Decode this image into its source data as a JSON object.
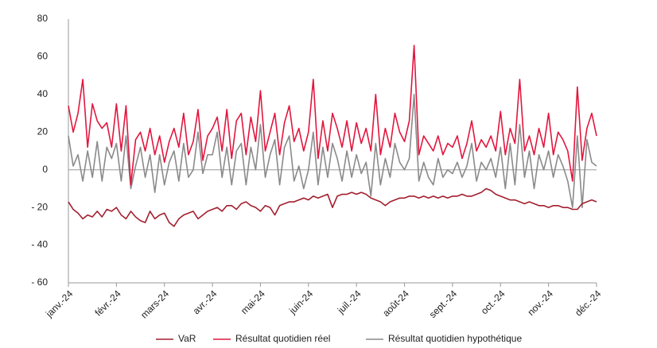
{
  "chart_data": {
    "type": "line",
    "categories": [
      "janv.-24",
      null,
      null,
      null,
      null,
      null,
      null,
      null,
      null,
      null,
      "févr.-24",
      null,
      null,
      null,
      null,
      null,
      null,
      null,
      null,
      null,
      "mars-24",
      null,
      null,
      null,
      null,
      null,
      null,
      null,
      null,
      null,
      "avr.-24",
      null,
      null,
      null,
      null,
      null,
      null,
      null,
      null,
      null,
      "mai-24",
      null,
      null,
      null,
      null,
      null,
      null,
      null,
      null,
      null,
      "juin-24",
      null,
      null,
      null,
      null,
      null,
      null,
      null,
      null,
      null,
      "juil.-24",
      null,
      null,
      null,
      null,
      null,
      null,
      null,
      null,
      null,
      "août-24",
      null,
      null,
      null,
      null,
      null,
      null,
      null,
      null,
      null,
      "sept.-24",
      null,
      null,
      null,
      null,
      null,
      null,
      null,
      null,
      null,
      "oct.-24",
      null,
      null,
      null,
      null,
      null,
      null,
      null,
      null,
      null,
      "nov.-24",
      null,
      null,
      null,
      null,
      null,
      null,
      null,
      null,
      null,
      "déc.-24"
    ],
    "series": [
      {
        "name": "VaR",
        "color": "#a31f2e",
        "values": [
          -17,
          -21,
          -23,
          -26,
          -24,
          -25,
          -22,
          -25,
          -21,
          -22,
          -20,
          -24,
          -26,
          -22,
          -25,
          -27,
          -28,
          -22,
          -26,
          -24,
          -23,
          -28,
          -30,
          -26,
          -24,
          -23,
          -22,
          -26,
          -24,
          -22,
          -21,
          -20,
          -22,
          -19,
          -19,
          -21,
          -18,
          -17,
          -19,
          -20,
          -22,
          -19,
          -20,
          -24,
          -19,
          -18,
          -17,
          -17,
          -16,
          -15,
          -16,
          -14,
          -15,
          -14,
          -13,
          -20,
          -14,
          -13,
          -13,
          -12,
          -13,
          -12,
          -13,
          -15,
          -16,
          -17,
          -19,
          -17,
          -16,
          -15,
          -15,
          -14,
          -14,
          -15,
          -14,
          -15,
          -14,
          -15,
          -14,
          -15,
          -14,
          -14,
          -13,
          -14,
          -14,
          -13,
          -12,
          -10,
          -11,
          -13,
          -14,
          -15,
          -16,
          -16,
          -17,
          -18,
          -17,
          -18,
          -19,
          -19,
          -20,
          -19,
          -19,
          -20,
          -20,
          -21,
          -21,
          -18,
          -17,
          -16,
          -17
        ]
      },
      {
        "name": "Résultat quotidien réel",
        "color": "#e2163e",
        "values": [
          34,
          20,
          30,
          48,
          12,
          35,
          26,
          22,
          25,
          12,
          35,
          10,
          34,
          -8,
          16,
          20,
          10,
          22,
          8,
          18,
          4,
          15,
          22,
          12,
          30,
          8,
          15,
          32,
          5,
          18,
          22,
          28,
          10,
          32,
          6,
          26,
          30,
          8,
          28,
          15,
          42,
          10,
          20,
          30,
          8,
          25,
          34,
          15,
          22,
          10,
          20,
          48,
          6,
          26,
          10,
          30,
          22,
          12,
          26,
          10,
          25,
          14,
          22,
          10,
          40,
          8,
          22,
          12,
          30,
          20,
          15,
          26,
          66,
          8,
          18,
          14,
          10,
          18,
          8,
          14,
          12,
          18,
          6,
          14,
          26,
          10,
          16,
          12,
          18,
          10,
          31,
          8,
          22,
          14,
          48,
          10,
          18,
          8,
          22,
          12,
          30,
          8,
          20,
          16,
          10,
          -6,
          44,
          5,
          22,
          30,
          18
        ]
      },
      {
        "name": "Résultat quotidien hypothétique",
        "color": "#8a8a8a",
        "values": [
          18,
          2,
          8,
          -6,
          10,
          -4,
          15,
          -6,
          12,
          6,
          14,
          -6,
          18,
          -10,
          2,
          12,
          -4,
          8,
          -12,
          8,
          -8,
          4,
          10,
          -6,
          14,
          -4,
          0,
          20,
          -2,
          8,
          8,
          20,
          -4,
          12,
          -8,
          10,
          14,
          -8,
          12,
          0,
          24,
          -4,
          8,
          16,
          -8,
          12,
          18,
          -6,
          2,
          -10,
          0,
          20,
          -8,
          12,
          -4,
          14,
          6,
          -6,
          10,
          -4,
          8,
          -2,
          4,
          -14,
          14,
          -8,
          6,
          -4,
          14,
          4,
          0,
          6,
          40,
          -6,
          4,
          -4,
          -8,
          6,
          -4,
          0,
          -2,
          4,
          -4,
          2,
          14,
          -6,
          4,
          0,
          6,
          -4,
          12,
          -10,
          14,
          -8,
          24,
          -4,
          10,
          -10,
          8,
          0,
          10,
          -4,
          8,
          2,
          -6,
          -20,
          18,
          -20,
          16,
          4,
          2
        ]
      }
    ],
    "ylim": [
      -60,
      80
    ],
    "yticks": [
      {
        "value": -60,
        "label": "- 60"
      },
      {
        "value": -40,
        "label": "- 40"
      },
      {
        "value": -20,
        "label": "- 20"
      },
      0,
      20,
      40,
      60,
      80
    ],
    "zero_line": true,
    "legend": "bottom"
  }
}
